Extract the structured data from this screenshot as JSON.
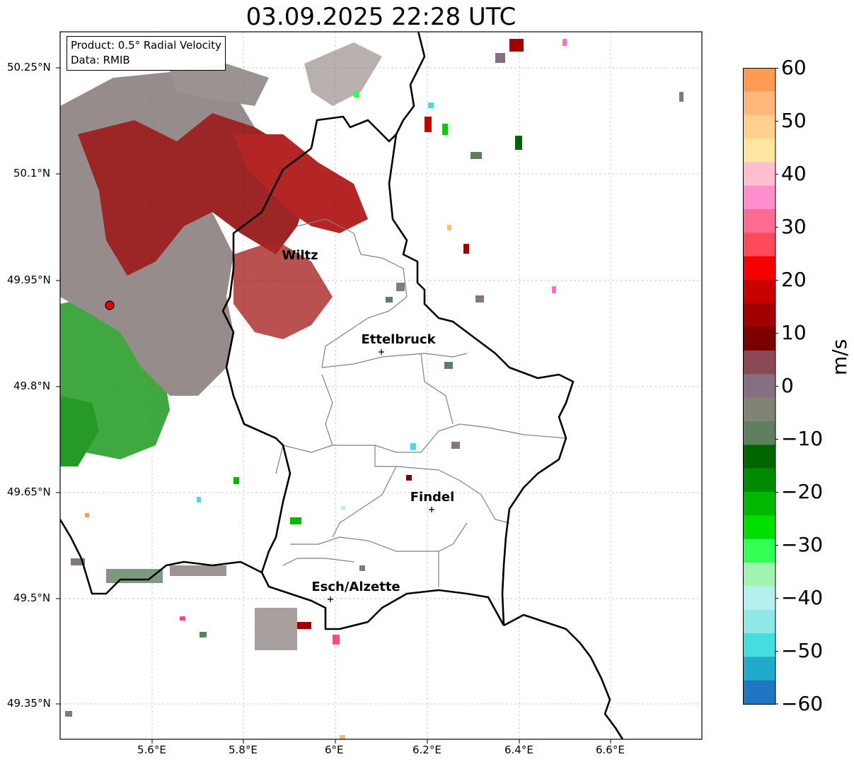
{
  "title": "03.09.2025 22:28 UTC",
  "info": {
    "product": "Product: 0.5° Radial Velocity",
    "data_source": "Data: RMIB"
  },
  "axes": {
    "lon_ticks": [
      "5.6°E",
      "5.8°E",
      "6°E",
      "6.2°E",
      "6.4°E",
      "6.6°E"
    ],
    "lat_ticks": [
      "50.25°N",
      "50.1°N",
      "49.95°N",
      "49.8°N",
      "49.65°N",
      "49.35°N",
      "49.5°N"
    ]
  },
  "cities": [
    "Wiltz",
    "Ettelbruck",
    "Findel",
    "Esch/Alzette"
  ],
  "colorbar": {
    "unit": "m/s",
    "ticks": [
      "60",
      "50",
      "40",
      "30",
      "20",
      "10",
      "0",
      "−10",
      "−20",
      "−30",
      "−40",
      "−50",
      "−60"
    ],
    "colors_top_to_bottom": [
      "#ff9a55",
      "#ffb77a",
      "#ffd08e",
      "#ffe6a0",
      "#ffbfd0",
      "#ff8ecf",
      "#ff6a90",
      "#ff4a5a",
      "#f50000",
      "#c80000",
      "#a00000",
      "#7c0000",
      "#8a4a55",
      "#857080",
      "#7f8475",
      "#5f7f5f",
      "#006400",
      "#008a00",
      "#00b800",
      "#00e000",
      "#33ff55",
      "#9ff5b0",
      "#b5f0ef",
      "#8fe8e8",
      "#44dede",
      "#22aacc",
      "#1f77c4"
    ]
  },
  "radar_site_color": "#e00000"
}
